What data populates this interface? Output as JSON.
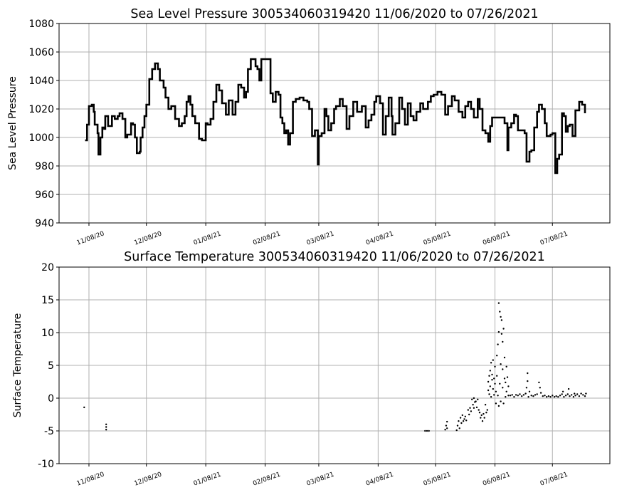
{
  "chart_data": [
    {
      "type": "line",
      "title": "Sea Level Pressure 300534060319420  11/06/2020 to 07/26/2021",
      "xlabel": "",
      "ylabel": "Sea Level Pressure",
      "x_unit": "days since 11/06/2020",
      "xlim": [
        -13.6,
        274
      ],
      "ylim": [
        940,
        1080
      ],
      "yticks": [
        940,
        960,
        980,
        1000,
        1020,
        1040,
        1060,
        1080
      ],
      "xticks": [
        {
          "day": 2,
          "label": "11/08/20"
        },
        {
          "day": 32,
          "label": "12/08/20"
        },
        {
          "day": 63,
          "label": "01/08/21"
        },
        {
          "day": 94,
          "label": "02/08/21"
        },
        {
          "day": 122,
          "label": "03/08/21"
        },
        {
          "day": 153,
          "label": "04/08/21"
        },
        {
          "day": 183,
          "label": "05/08/21"
        },
        {
          "day": 214,
          "label": "06/08/21"
        },
        {
          "day": 244,
          "label": "07/08/21"
        }
      ],
      "grid": true,
      "color": "#000000",
      "points": [
        [
          0,
          998
        ],
        [
          1,
          1009
        ],
        [
          2,
          1022
        ],
        [
          3.5,
          1023
        ],
        [
          4.5,
          1018
        ],
        [
          5,
          1009
        ],
        [
          6.5,
          1003
        ],
        [
          7,
          988
        ],
        [
          8,
          1000
        ],
        [
          9,
          1007
        ],
        [
          10,
          1006
        ],
        [
          10.5,
          1015
        ],
        [
          12,
          1008
        ],
        [
          14,
          1015
        ],
        [
          15.5,
          1013
        ],
        [
          17,
          1015
        ],
        [
          18,
          1017
        ],
        [
          19.5,
          1013
        ],
        [
          21,
          1000
        ],
        [
          22,
          1002
        ],
        [
          24,
          1010
        ],
        [
          25,
          1009
        ],
        [
          26,
          1000
        ],
        [
          27,
          989
        ],
        [
          28.5,
          990
        ],
        [
          29,
          1000
        ],
        [
          30,
          1007
        ],
        [
          31,
          1015
        ],
        [
          32,
          1023
        ],
        [
          33.5,
          1041
        ],
        [
          35,
          1048
        ],
        [
          36.5,
          1052
        ],
        [
          38,
          1048
        ],
        [
          39,
          1040
        ],
        [
          40,
          1040
        ],
        [
          41,
          1035
        ],
        [
          42,
          1028
        ],
        [
          43.5,
          1020
        ],
        [
          45,
          1022
        ],
        [
          47,
          1013
        ],
        [
          49,
          1008
        ],
        [
          50.5,
          1010
        ],
        [
          52,
          1015
        ],
        [
          53,
          1025
        ],
        [
          54,
          1029
        ],
        [
          55,
          1023
        ],
        [
          56,
          1015
        ],
        [
          57.5,
          1010
        ],
        [
          59.5,
          999
        ],
        [
          61,
          998
        ],
        [
          63,
          1010
        ],
        [
          64,
          1009
        ],
        [
          65.5,
          1013
        ],
        [
          67,
          1025
        ],
        [
          68.5,
          1037
        ],
        [
          70,
          1033
        ],
        [
          71.5,
          1024
        ],
        [
          73.5,
          1016
        ],
        [
          75,
          1026
        ],
        [
          76,
          1026
        ],
        [
          77,
          1016
        ],
        [
          78.5,
          1025
        ],
        [
          80,
          1037
        ],
        [
          81.5,
          1035
        ],
        [
          83,
          1028
        ],
        [
          84,
          1032
        ],
        [
          85,
          1048
        ],
        [
          86.5,
          1055
        ],
        [
          88,
          1055
        ],
        [
          89,
          1050
        ],
        [
          90,
          1048
        ],
        [
          91,
          1040
        ],
        [
          92,
          1055
        ],
        [
          96.5,
          1055
        ],
        [
          96.8,
          1031
        ],
        [
          98,
          1025
        ],
        [
          99.5,
          1032
        ],
        [
          101,
          1030
        ],
        [
          102,
          1014
        ],
        [
          103,
          1010
        ],
        [
          104,
          1003
        ],
        [
          105,
          1005
        ],
        [
          106,
          995
        ],
        [
          107,
          1003
        ],
        [
          108.5,
          1025
        ],
        [
          110,
          1027
        ],
        [
          112,
          1028
        ],
        [
          114,
          1026
        ],
        [
          116,
          1025
        ],
        [
          117,
          1020
        ],
        [
          118.5,
          1001
        ],
        [
          120,
          1005
        ],
        [
          121.5,
          981
        ],
        [
          122,
          1001
        ],
        [
          123.5,
          1003
        ],
        [
          125,
          1020
        ],
        [
          126,
          1015
        ],
        [
          127,
          1005
        ],
        [
          128.5,
          1010
        ],
        [
          130,
          1020
        ],
        [
          131,
          1022
        ],
        [
          133,
          1027
        ],
        [
          134.5,
          1022
        ],
        [
          136.5,
          1006
        ],
        [
          138,
          1015
        ],
        [
          140,
          1025
        ],
        [
          142,
          1018
        ],
        [
          144.5,
          1022
        ],
        [
          146.5,
          1007
        ],
        [
          148,
          1012
        ],
        [
          149.5,
          1016
        ],
        [
          151,
          1025
        ],
        [
          152,
          1029
        ],
        [
          154,
          1024
        ],
        [
          155.5,
          1002
        ],
        [
          157,
          1015
        ],
        [
          158.5,
          1028
        ],
        [
          160,
          1015
        ],
        [
          160.5,
          1002
        ],
        [
          162,
          1010
        ],
        [
          164,
          1028
        ],
        [
          165.5,
          1020
        ],
        [
          167,
          1009
        ],
        [
          168.5,
          1024
        ],
        [
          170,
          1015
        ],
        [
          171.5,
          1012
        ],
        [
          173,
          1018
        ],
        [
          175,
          1024
        ],
        [
          176.5,
          1020
        ],
        [
          178,
          1020
        ],
        [
          179,
          1025
        ],
        [
          180.5,
          1029
        ],
        [
          182,
          1030
        ],
        [
          184,
          1032
        ],
        [
          186,
          1030
        ],
        [
          188,
          1016
        ],
        [
          189.5,
          1022
        ],
        [
          191.5,
          1029
        ],
        [
          193,
          1026
        ],
        [
          195,
          1018
        ],
        [
          197,
          1014
        ],
        [
          198.5,
          1022
        ],
        [
          200,
          1025
        ],
        [
          201.5,
          1020
        ],
        [
          203,
          1014
        ],
        [
          205,
          1027
        ],
        [
          206,
          1020
        ],
        [
          207.5,
          1005
        ],
        [
          209,
          1003
        ],
        [
          210.5,
          997
        ],
        [
          211.5,
          1008
        ],
        [
          212.5,
          1014
        ],
        [
          215,
          1014
        ],
        [
          217.5,
          1014
        ],
        [
          219,
          1010
        ],
        [
          220.5,
          991
        ],
        [
          221,
          1007
        ],
        [
          222.5,
          1010
        ],
        [
          224,
          1016
        ],
        [
          225,
          1015
        ],
        [
          226,
          1005
        ],
        [
          227.5,
          1005
        ],
        [
          229.5,
          1003
        ],
        [
          230.5,
          983
        ],
        [
          232,
          990
        ],
        [
          233,
          991
        ],
        [
          234.5,
          1007
        ],
        [
          236,
          1018
        ],
        [
          237,
          1023
        ],
        [
          238.5,
          1020
        ],
        [
          240,
          1010
        ],
        [
          241,
          1001
        ],
        [
          243,
          1002
        ],
        [
          244,
          1003
        ],
        [
          245.5,
          975
        ],
        [
          246.5,
          985
        ],
        [
          247.5,
          988
        ],
        [
          249,
          1017
        ],
        [
          250,
          1015
        ],
        [
          251,
          1004
        ],
        [
          252,
          1008
        ],
        [
          253,
          1009
        ],
        [
          254.5,
          1001
        ],
        [
          256,
          1019
        ],
        [
          258,
          1025
        ],
        [
          259.5,
          1023
        ],
        [
          261,
          1017
        ]
      ]
    },
    {
      "type": "scatter",
      "title": "Surface Temperature 300534060319420  11/06/2020 to 07/26/2021",
      "xlabel": "",
      "ylabel": "Surface Temperature",
      "x_unit": "days since 11/06/2020",
      "xlim": [
        -13.6,
        274
      ],
      "ylim": [
        -10,
        20
      ],
      "yticks": [
        -10,
        -5,
        0,
        5,
        10,
        15,
        20
      ],
      "xticks": [
        {
          "day": 2,
          "label": "11/08/20"
        },
        {
          "day": 32,
          "label": "12/08/20"
        },
        {
          "day": 63,
          "label": "01/08/21"
        },
        {
          "day": 94,
          "label": "02/08/21"
        },
        {
          "day": 122,
          "label": "03/08/21"
        },
        {
          "day": 153,
          "label": "04/08/21"
        },
        {
          "day": 183,
          "label": "05/08/21"
        },
        {
          "day": 214,
          "label": "06/08/21"
        },
        {
          "day": 244,
          "label": "07/08/21"
        }
      ],
      "grid": true,
      "color": "#000000",
      "points": [
        [
          -0.5,
          -1.4
        ],
        [
          11,
          -4
        ],
        [
          11,
          -4.4
        ],
        [
          11,
          -4.8
        ],
        [
          177.5,
          -5
        ],
        [
          178.5,
          -5
        ],
        [
          179.5,
          -5
        ],
        [
          188,
          -4.8
        ],
        [
          188.5,
          -4.2
        ],
        [
          189,
          -3.6
        ],
        [
          189,
          -4.6
        ],
        [
          194,
          -4.9
        ],
        [
          194.5,
          -4.2
        ],
        [
          195,
          -3.5
        ],
        [
          195.5,
          -4.6
        ],
        [
          196,
          -3
        ],
        [
          196.5,
          -3.8
        ],
        [
          197,
          -2.6
        ],
        [
          197.5,
          -3.5
        ],
        [
          198,
          -3.2
        ],
        [
          198.5,
          -2.8
        ],
        [
          199,
          -3.4
        ],
        [
          200,
          -1.8
        ],
        [
          200.5,
          -2.5
        ],
        [
          201,
          -1.5
        ],
        [
          201.5,
          -2
        ],
        [
          202,
          -0.2
        ],
        [
          202.5,
          -1
        ],
        [
          203,
          0
        ],
        [
          203,
          -1.5
        ],
        [
          203.5,
          -0.6
        ],
        [
          204,
          -0.5
        ],
        [
          204.5,
          -1.4
        ],
        [
          205,
          -0.2
        ],
        [
          205.5,
          -1.8
        ],
        [
          206,
          -2.2
        ],
        [
          206.5,
          -3
        ],
        [
          207,
          -2.6
        ],
        [
          207.5,
          -3.5
        ],
        [
          208,
          -2.4
        ],
        [
          208.5,
          -3
        ],
        [
          209,
          -1
        ],
        [
          209.5,
          -2.2
        ],
        [
          210,
          -1.8
        ],
        [
          210.5,
          1.2
        ],
        [
          210.5,
          2.5
        ],
        [
          211,
          3.4
        ],
        [
          211,
          0.6
        ],
        [
          211.5,
          1.8
        ],
        [
          211.5,
          4.2
        ],
        [
          212,
          0.2
        ],
        [
          212,
          5.4
        ],
        [
          212.5,
          2.8
        ],
        [
          212.5,
          3.6
        ],
        [
          213,
          1.4
        ],
        [
          213,
          5.8
        ],
        [
          213.5,
          0.5
        ],
        [
          213.5,
          3
        ],
        [
          214,
          2.2
        ],
        [
          214,
          4.8
        ],
        [
          214.5,
          -0.8
        ],
        [
          214.5,
          1
        ],
        [
          215,
          6.5
        ],
        [
          215,
          3.4
        ],
        [
          215.5,
          8.2
        ],
        [
          215.5,
          0.4
        ],
        [
          216,
          10.1
        ],
        [
          216,
          14.5
        ],
        [
          216,
          -1.2
        ],
        [
          216.5,
          13.2
        ],
        [
          216.5,
          2.2
        ],
        [
          217,
          12.4
        ],
        [
          217,
          5.2
        ],
        [
          217,
          -0.5
        ],
        [
          217.5,
          9.8
        ],
        [
          217.5,
          11.9
        ],
        [
          218,
          8.6
        ],
        [
          218,
          4.4
        ],
        [
          218,
          1.6
        ],
        [
          218.5,
          10.6
        ],
        [
          218.5,
          -0.8
        ],
        [
          219,
          6.2
        ],
        [
          219,
          3
        ],
        [
          219.5,
          0.2
        ],
        [
          219.5,
          2.4
        ],
        [
          220,
          4.8
        ],
        [
          220,
          1
        ],
        [
          220.5,
          3.2
        ],
        [
          221,
          0.4
        ],
        [
          221,
          1.8
        ],
        [
          222,
          0.4
        ],
        [
          223,
          0.5
        ],
        [
          224,
          0.2
        ],
        [
          225,
          0.5
        ],
        [
          226,
          0.4
        ],
        [
          227,
          0.6
        ],
        [
          228,
          0.3
        ],
        [
          229,
          0.5
        ],
        [
          230,
          0.7
        ],
        [
          230.5,
          1.6
        ],
        [
          231,
          2.6
        ],
        [
          231,
          3.8
        ],
        [
          231.5,
          0.2
        ],
        [
          232,
          1
        ],
        [
          233,
          0.4
        ],
        [
          234,
          0.3
        ],
        [
          235,
          0.5
        ],
        [
          236,
          0.6
        ],
        [
          237,
          2.4
        ],
        [
          237.5,
          1.6
        ],
        [
          238,
          0.8
        ],
        [
          239,
          0.3
        ],
        [
          240,
          0.4
        ],
        [
          241,
          0.2
        ],
        [
          242,
          0.3
        ],
        [
          243,
          0.2
        ],
        [
          244,
          0.4
        ],
        [
          245,
          0.2
        ],
        [
          246,
          0.3
        ],
        [
          247,
          0.2
        ],
        [
          248,
          0.4
        ],
        [
          249,
          0.6
        ],
        [
          249.5,
          1
        ],
        [
          250,
          0.2
        ],
        [
          251,
          0.4
        ],
        [
          252,
          0.6
        ],
        [
          252.5,
          1.4
        ],
        [
          253,
          0.3
        ],
        [
          254,
          0.5
        ],
        [
          255,
          0.2
        ],
        [
          255.5,
          0.7
        ],
        [
          256,
          0.4
        ],
        [
          257,
          0.6
        ],
        [
          258,
          0.3
        ],
        [
          259,
          0.7
        ],
        [
          260,
          0.5
        ],
        [
          261,
          0.3
        ],
        [
          261.5,
          0.7
        ]
      ]
    }
  ]
}
